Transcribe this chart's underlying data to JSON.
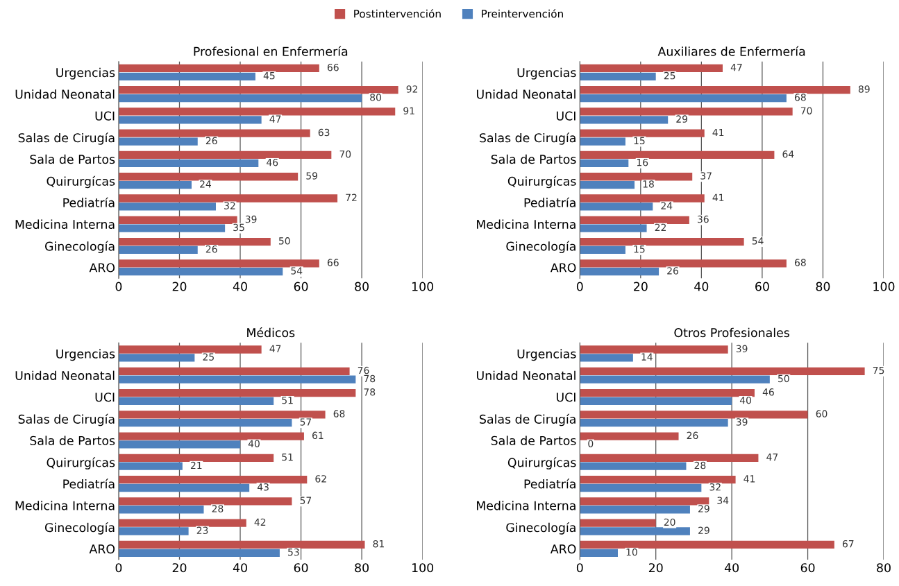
{
  "chart_data": [
    {
      "type": "bar",
      "orientation": "horizontal",
      "title": "Profesional en Enfermería",
      "categories": [
        "Urgencias",
        "Unidad Neonatal",
        "UCI",
        "Salas de Cirugía",
        "Sala de Partos",
        "Quirurgícas",
        "Pediatría",
        "Medicina Interna",
        "Ginecología",
        "ARO"
      ],
      "series": [
        {
          "name": "Postintervención",
          "color": "#c0504d",
          "values": [
            66,
            92,
            91,
            63,
            70,
            59,
            72,
            39,
            50,
            66
          ]
        },
        {
          "name": "Preintervención",
          "color": "#4f81bd",
          "values": [
            45,
            80,
            47,
            26,
            46,
            24,
            32,
            35,
            26,
            54
          ]
        }
      ],
      "xlim": [
        0,
        100
      ],
      "xticks": [
        0,
        20,
        40,
        60,
        80,
        100
      ],
      "grid": "x",
      "legend": "top",
      "data_labels": true
    },
    {
      "type": "bar",
      "orientation": "horizontal",
      "title": "Auxiliares de Enfermería",
      "categories": [
        "Urgencias",
        "Unidad Neonatal",
        "UCI",
        "Salas de Cirugía",
        "Sala de Partos",
        "Quirurgícas",
        "Pediatría",
        "Medicina Interna",
        "Ginecología",
        "ARO"
      ],
      "series": [
        {
          "name": "Postintervención",
          "color": "#c0504d",
          "values": [
            47,
            89,
            70,
            41,
            64,
            37,
            41,
            36,
            54,
            68
          ]
        },
        {
          "name": "Preintervención",
          "color": "#4f81bd",
          "values": [
            25,
            68,
            29,
            15,
            16,
            18,
            24,
            22,
            15,
            26
          ]
        }
      ],
      "xlim": [
        0,
        100
      ],
      "xticks": [
        0,
        20,
        40,
        60,
        80,
        100
      ],
      "grid": "x",
      "legend": "top",
      "data_labels": true
    },
    {
      "type": "bar",
      "orientation": "horizontal",
      "title": "Médicos",
      "categories": [
        "Urgencias",
        "Unidad Neonatal",
        "UCI",
        "Salas de Cirugía",
        "Sala de Partos",
        "Quirurgícas",
        "Pediatría",
        "Medicina Interna",
        "Ginecología",
        "ARO"
      ],
      "series": [
        {
          "name": "Postintervención",
          "color": "#c0504d",
          "values": [
            47,
            76,
            78,
            68,
            61,
            51,
            62,
            57,
            42,
            81
          ]
        },
        {
          "name": "Preintervención",
          "color": "#4f81bd",
          "values": [
            25,
            78,
            51,
            57,
            40,
            21,
            43,
            28,
            23,
            53
          ]
        }
      ],
      "xlim": [
        0,
        100
      ],
      "xticks": [
        0,
        20,
        40,
        60,
        80,
        100
      ],
      "grid": "x",
      "legend": "top",
      "data_labels": true
    },
    {
      "type": "bar",
      "orientation": "horizontal",
      "title": "Otros Profesionales",
      "categories": [
        "Urgencias",
        "Unidad Neonatal",
        "UCI",
        "Salas de Cirugía",
        "Sala de Partos",
        "Quirurgícas",
        "Pediatría",
        "Medicina Interna",
        "Ginecología",
        "ARO"
      ],
      "series": [
        {
          "name": "Postintervención",
          "color": "#c0504d",
          "values": [
            39,
            75,
            46,
            60,
            26,
            47,
            41,
            34,
            20,
            67
          ]
        },
        {
          "name": "Preintervención",
          "color": "#4f81bd",
          "values": [
            14,
            50,
            40,
            39,
            0,
            28,
            32,
            29,
            29,
            10
          ]
        }
      ],
      "xlim": [
        0,
        80
      ],
      "xticks": [
        0,
        20,
        40,
        60,
        80
      ],
      "grid": "x",
      "legend": "top",
      "data_labels": true
    }
  ]
}
